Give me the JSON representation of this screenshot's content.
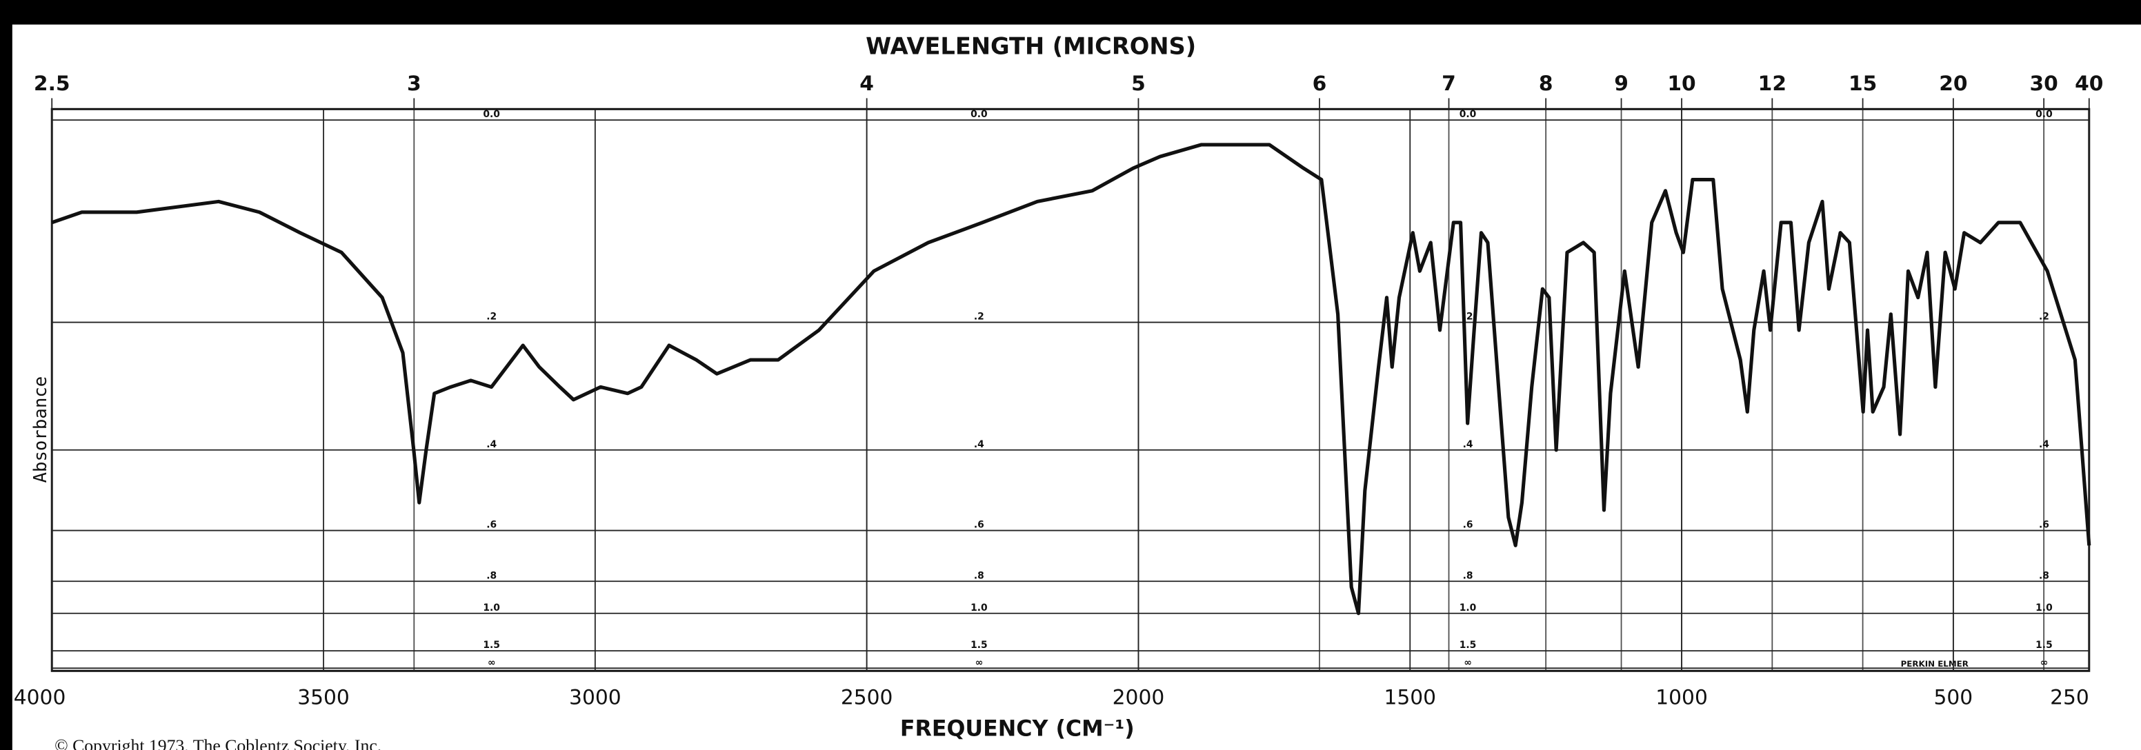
{
  "chart_data": {
    "type": "line",
    "title": "WAVELENGTH (MICRONS)",
    "x_label": "FREQUENCY (CM⁻¹)",
    "y_label": "Absorbance",
    "copyright": "© Copyright 1973, The Coblentz Society, Inc.",
    "instrument": "PERKIN ELMER",
    "color": "#111111",
    "grid": true,
    "y_scale": "absorbance",
    "xlim": [
      4000,
      250
    ],
    "xticks": [
      4000,
      3500,
      3000,
      2500,
      2000,
      1500,
      1000,
      500,
      250
    ],
    "x2lim": [
      2.5,
      40
    ],
    "x2ticks": [
      2.5,
      3,
      4,
      5,
      6,
      7,
      8,
      9,
      10,
      12,
      15,
      20,
      30,
      40
    ],
    "ylim": [
      0,
      null
    ],
    "yticks": [
      {
        "value": 0,
        "label": "0.0"
      },
      {
        "value": 0.2,
        "label": ".2"
      },
      {
        "value": 0.4,
        "label": ".4"
      },
      {
        "value": 0.6,
        "label": ".6"
      },
      {
        "value": 0.8,
        "label": ".8"
      },
      {
        "value": 1,
        "label": "1.0"
      },
      {
        "value": 1.5,
        "label": "1.5"
      },
      {
        "value": null,
        "label": "∞"
      }
    ],
    "x": [
      4000,
      3945,
      3844,
      3693,
      3618,
      3543,
      3467,
      3392,
      3354,
      3334,
      3324,
      3311,
      3296,
      3266,
      3229,
      3191,
      3133,
      3103,
      3065,
      3040,
      2990,
      2940,
      2915,
      2864,
      2814,
      2776,
      2714,
      2663,
      2588,
      2487,
      2387,
      2287,
      2186,
      2085,
      2010,
      1960,
      1884,
      1834,
      1759,
      1696,
      1663,
      1633,
      1608,
      1595,
      1583,
      1558,
      1543,
      1533,
      1520,
      1495,
      1482,
      1462,
      1445,
      1420,
      1407,
      1394,
      1382,
      1369,
      1357,
      1332,
      1319,
      1306,
      1294,
      1276,
      1256,
      1244,
      1231,
      1211,
      1181,
      1161,
      1143,
      1131,
      1105,
      1080,
      1055,
      1030,
      1010,
      997,
      980,
      942,
      925,
      892,
      879,
      867,
      849,
      837,
      817,
      799,
      784,
      766,
      741,
      729,
      708,
      691,
      666,
      658,
      648,
      628,
      615,
      598,
      583,
      565,
      548,
      533,
      515,
      497,
      480,
      450,
      417,
      377,
      327,
      276,
      250
    ],
    "values": [
      0.09,
      0.08,
      0.08,
      0.07,
      0.08,
      0.1,
      0.12,
      0.17,
      0.24,
      0.4,
      0.52,
      0.4,
      0.3,
      0.29,
      0.28,
      0.29,
      0.23,
      0.26,
      0.29,
      0.31,
      0.29,
      0.3,
      0.29,
      0.23,
      0.25,
      0.27,
      0.25,
      0.25,
      0.21,
      0.14,
      0.11,
      0.09,
      0.07,
      0.06,
      0.04,
      0.03,
      0.02,
      0.02,
      0.02,
      0.04,
      0.05,
      0.19,
      0.83,
      1.0,
      0.49,
      0.26,
      0.17,
      0.26,
      0.17,
      0.1,
      0.14,
      0.11,
      0.21,
      0.09,
      0.09,
      0.35,
      0.21,
      0.1,
      0.11,
      0.35,
      0.56,
      0.65,
      0.52,
      0.29,
      0.16,
      0.17,
      0.4,
      0.12,
      0.11,
      0.12,
      0.54,
      0.3,
      0.14,
      0.26,
      0.09,
      0.06,
      0.1,
      0.12,
      0.05,
      0.05,
      0.16,
      0.25,
      0.33,
      0.21,
      0.14,
      0.21,
      0.09,
      0.09,
      0.21,
      0.11,
      0.07,
      0.16,
      0.1,
      0.11,
      0.33,
      0.21,
      0.33,
      0.29,
      0.19,
      0.37,
      0.14,
      0.17,
      0.12,
      0.29,
      0.12,
      0.16,
      0.1,
      0.11,
      0.09,
      0.09,
      0.14,
      0.25,
      0.65
    ]
  }
}
